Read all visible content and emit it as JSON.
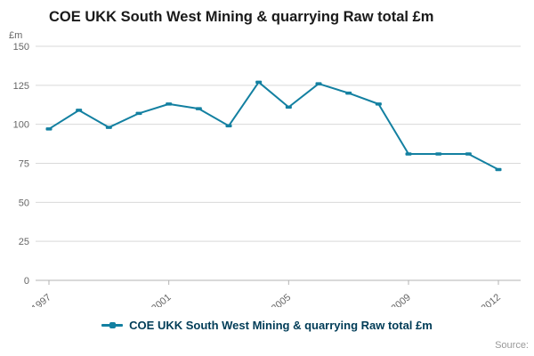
{
  "header": {
    "title": "COE UKK South West Mining & quarrying Raw total £m"
  },
  "chart_data": {
    "type": "line",
    "title": "COE UKK South West Mining & quarrying Raw total £m",
    "y_unit_label": "£m",
    "xlabel": "",
    "ylabel": "£m",
    "x": [
      1997,
      1998,
      1999,
      2000,
      2001,
      2002,
      2003,
      2004,
      2005,
      2006,
      2007,
      2008,
      2009,
      2010,
      2011,
      2012
    ],
    "series": [
      {
        "name": "COE UKK South West Mining & quarrying Raw total £m",
        "values": [
          97,
          109,
          98,
          107,
          113,
          110,
          99,
          127,
          111,
          126,
          120,
          113,
          81,
          81,
          81,
          71
        ],
        "color": "#1380A1"
      }
    ],
    "ylim": [
      0,
      150
    ],
    "yticks": [
      0,
      25,
      50,
      75,
      100,
      125,
      150
    ],
    "xticks": [
      1997,
      2001,
      2005,
      2009,
      2012
    ],
    "grid": true,
    "legend_position": "bottom",
    "gridline_color": "#d9d9d9",
    "axis_color": "#b3b3b3",
    "tick_label_color": "#666666"
  },
  "legend": {
    "label": "COE UKK South West Mining & quarrying Raw total £m"
  },
  "footer": {
    "source_label": "Source:"
  }
}
